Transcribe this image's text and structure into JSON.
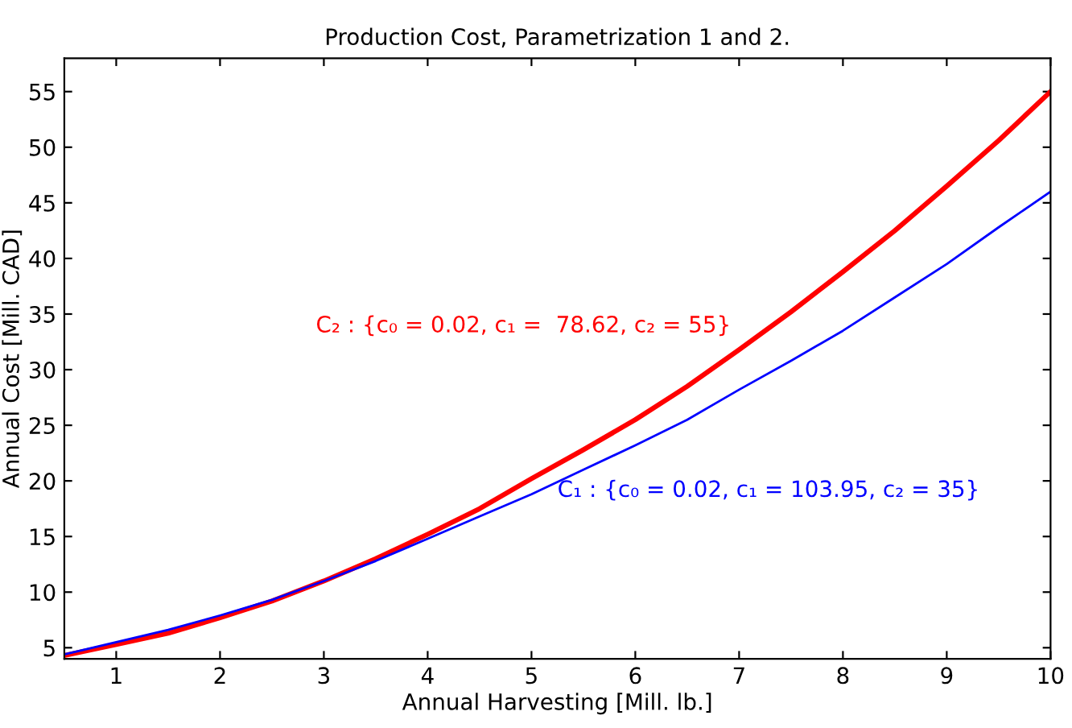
{
  "chart_data": {
    "type": "line",
    "title": "Production Cost, Parametrization 1 and 2.",
    "xlabel": "Annual Harvesting [Mill. lb.]",
    "ylabel": "Annual Cost [Mill. CAD]",
    "x": [
      0.5,
      1,
      1.5,
      2,
      2.5,
      3,
      3.5,
      4,
      4.5,
      5,
      5.5,
      6,
      6.5,
      7,
      7.5,
      8,
      8.5,
      9,
      9.5,
      10
    ],
    "series": [
      {
        "name": "C₂ : {c₀ = 0.02, c₁ =  78.62, c₂ = 55}",
        "color": "#ff0000",
        "values": [
          4.3,
          5.3,
          6.3,
          7.7,
          9.2,
          11,
          13,
          15.2,
          17.5,
          20.2,
          22.8,
          25.5,
          28.5,
          31.8,
          35.2,
          38.8,
          42.5,
          46.5,
          50.6,
          55
        ]
      },
      {
        "name": "C₁ : {c₀ = 0.02, c₁ = 103.95, c₂ = 35}",
        "color": "#0000ff",
        "values": [
          4.4,
          5.5,
          6.6,
          7.9,
          9.3,
          11,
          12.8,
          14.8,
          16.8,
          18.8,
          21,
          23.2,
          25.5,
          28.2,
          30.8,
          33.5,
          36.5,
          39.5,
          42.8,
          46
        ]
      }
    ],
    "xlim": [
      0.5,
      10
    ],
    "ylim": [
      4,
      58
    ],
    "xticks": [
      1,
      2,
      3,
      4,
      5,
      6,
      7,
      8,
      9,
      10
    ],
    "yticks": [
      5,
      10,
      15,
      20,
      25,
      30,
      35,
      40,
      45,
      50,
      55
    ],
    "grid": false,
    "legend": false
  }
}
